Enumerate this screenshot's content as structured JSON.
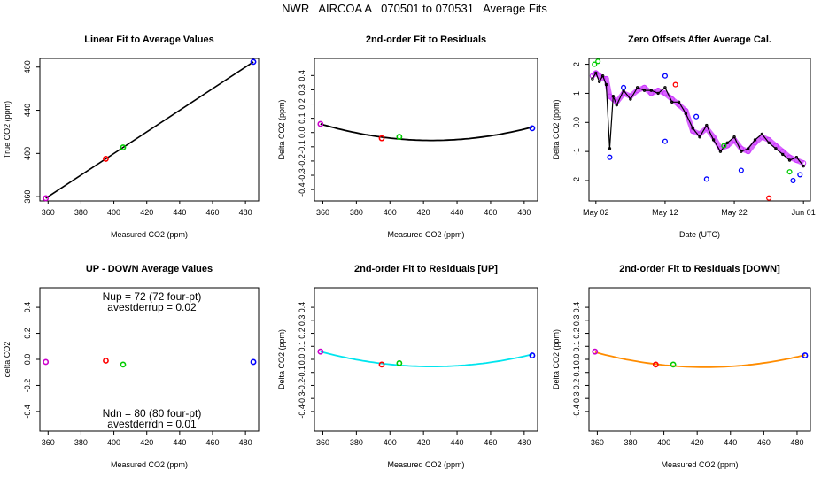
{
  "title": "NWR   AIRCOA A   070501 to 070531   Average Fits",
  "chart_data": [
    {
      "type": "scatter",
      "title": "Linear Fit to Average Values",
      "xlabel": "Measured CO2 (ppm)",
      "ylabel": "True CO2 (ppm)",
      "xlim": [
        355,
        488
      ],
      "ylim": [
        356,
        488
      ],
      "xticks": [
        360,
        380,
        400,
        420,
        440,
        460,
        480
      ],
      "yticks": [
        360,
        400,
        440,
        480
      ],
      "points": [
        {
          "x": 358.6,
          "y": 358.5,
          "color": "#cc00cc"
        },
        {
          "x": 395.1,
          "y": 395.0,
          "color": "#ff0000"
        },
        {
          "x": 405.6,
          "y": 405.6,
          "color": "#00cc00"
        },
        {
          "x": 484.8,
          "y": 484.8,
          "color": "#0000ff"
        }
      ],
      "fit_line": {
        "type": "linear",
        "color": "#000000",
        "x": [
          358.6,
          484.8
        ],
        "y": [
          358.5,
          484.8
        ]
      }
    },
    {
      "type": "scatter",
      "title": "2nd-order Fit to Residuals",
      "xlabel": "Measured CO2 (ppm)",
      "ylabel": "Delta CO2 (ppm)",
      "xlim": [
        355,
        488
      ],
      "ylim": [
        -0.48,
        0.52
      ],
      "xticks": [
        360,
        380,
        400,
        420,
        440,
        460,
        480
      ],
      "yticks": [
        -0.4,
        -0.3,
        -0.2,
        -0.1,
        0.0,
        0.1,
        0.2,
        0.3,
        0.4
      ],
      "points": [
        {
          "x": 358.6,
          "y": 0.06,
          "color": "#cc00cc"
        },
        {
          "x": 395.1,
          "y": -0.04,
          "color": "#ff0000"
        },
        {
          "x": 405.6,
          "y": -0.03,
          "color": "#00cc00"
        },
        {
          "x": 484.8,
          "y": 0.03,
          "color": "#0000ff"
        }
      ],
      "fit_curve": {
        "type": "quadratic",
        "color": "#000000",
        "vertex_x": 425,
        "vertex_y": -0.055,
        "a": 2.61e-05,
        "x_range": [
          358.6,
          484.8
        ]
      }
    },
    {
      "type": "line",
      "title": "Zero Offsets After Average Cal.",
      "xlabel": "Date (UTC)",
      "ylabel": "Delta CO2 (ppm)",
      "x_unit": "days since May 1",
      "xlim": [
        0,
        32
      ],
      "ylim": [
        -2.7,
        2.2
      ],
      "xticks": [
        {
          "value": 1,
          "label": "May 02"
        },
        {
          "value": 11,
          "label": "May 12"
        },
        {
          "value": 21,
          "label": "May 22"
        },
        {
          "value": 31,
          "label": "Jun 01"
        }
      ],
      "yticks": [
        -2,
        -1,
        0,
        1,
        2
      ],
      "series": [
        {
          "color": "#cc33ff",
          "x": [
            0.5,
            1.0,
            1.5,
            2.0,
            2.5,
            3.0,
            3.5,
            4.0,
            5.0,
            6.0,
            7.0,
            8.0,
            9.0,
            10.0,
            11.0,
            12.0,
            13.0,
            14.0,
            15.0,
            16.0,
            17.0,
            18.0,
            19.0,
            20.0,
            21.0,
            22.0,
            23.0,
            24.0,
            25.0,
            26.0,
            27.0,
            28.0,
            29.0,
            30.0,
            31.0
          ],
          "y": [
            1.6,
            1.7,
            1.6,
            1.5,
            1.5,
            0.9,
            0.8,
            0.7,
            1.0,
            0.9,
            1.1,
            1.2,
            1.0,
            1.1,
            1.0,
            0.8,
            0.6,
            0.4,
            -0.3,
            -0.4,
            -0.2,
            -0.5,
            -0.9,
            -0.8,
            -0.6,
            -0.9,
            -1.0,
            -0.7,
            -0.5,
            -0.6,
            -0.8,
            -1.0,
            -1.2,
            -1.3,
            -1.4
          ]
        },
        {
          "color": "#000000",
          "x": [
            0.5,
            1.0,
            1.5,
            2.0,
            2.5,
            3.0,
            3.5,
            4.0,
            5.0,
            6.0,
            7.0,
            8.0,
            9.0,
            10.0,
            11.0,
            12.0,
            13.0,
            14.0,
            15.0,
            16.0,
            17.0,
            18.0,
            19.0,
            20.0,
            21.0,
            22.0,
            23.0,
            24.0,
            25.0,
            26.0,
            27.0,
            28.0,
            29.0,
            30.0,
            31.0
          ],
          "y": [
            1.5,
            1.7,
            1.4,
            1.6,
            1.3,
            -0.9,
            0.9,
            0.6,
            1.1,
            0.8,
            1.2,
            1.1,
            1.1,
            1.0,
            1.2,
            0.7,
            0.7,
            0.3,
            -0.2,
            -0.5,
            -0.1,
            -0.6,
            -1.0,
            -0.7,
            -0.5,
            -1.0,
            -0.9,
            -0.6,
            -0.4,
            -0.7,
            -0.9,
            -1.1,
            -1.3,
            -1.2,
            -1.5
          ]
        }
      ],
      "outliers": [
        {
          "x": 0.8,
          "y": 2.0,
          "color": "#00cc00"
        },
        {
          "x": 1.3,
          "y": 2.1,
          "color": "#00cc00"
        },
        {
          "x": 3.0,
          "y": -1.2,
          "color": "#0000ff"
        },
        {
          "x": 5.0,
          "y": 1.2,
          "color": "#0000ff"
        },
        {
          "x": 11.0,
          "y": 1.6,
          "color": "#0000ff"
        },
        {
          "x": 11.0,
          "y": -0.65,
          "color": "#0000ff"
        },
        {
          "x": 12.5,
          "y": 1.3,
          "color": "#ff0000"
        },
        {
          "x": 15.5,
          "y": 0.2,
          "color": "#0000ff"
        },
        {
          "x": 17.0,
          "y": -1.95,
          "color": "#0000ff"
        },
        {
          "x": 19.5,
          "y": -0.8,
          "color": "#00cc00"
        },
        {
          "x": 22.0,
          "y": -1.65,
          "color": "#0000ff"
        },
        {
          "x": 26.0,
          "y": -2.6,
          "color": "#ff0000"
        },
        {
          "x": 29.0,
          "y": -1.7,
          "color": "#00cc00"
        },
        {
          "x": 29.5,
          "y": -2.0,
          "color": "#0000ff"
        },
        {
          "x": 30.5,
          "y": -1.8,
          "color": "#0000ff"
        }
      ]
    },
    {
      "type": "scatter",
      "title": "UP - DOWN Average Values",
      "xlabel": "Measured CO2 (ppm)",
      "ylabel": "delta CO2",
      "xlim": [
        355,
        488
      ],
      "ylim": [
        -0.55,
        0.55
      ],
      "xticks": [
        360,
        380,
        400,
        420,
        440,
        460,
        480
      ],
      "yticks": [
        -0.4,
        -0.2,
        0.0,
        0.2,
        0.4
      ],
      "points": [
        {
          "x": 358.6,
          "y": -0.02,
          "color": "#cc00cc"
        },
        {
          "x": 395.1,
          "y": -0.01,
          "color": "#ff0000"
        },
        {
          "x": 405.6,
          "y": -0.04,
          "color": "#00cc00"
        },
        {
          "x": 484.8,
          "y": -0.02,
          "color": "#0000ff"
        }
      ],
      "annotations": {
        "top_1": "Nup = 72 (72 four-pt)",
        "top_2": "avestderrup =  0.02",
        "bottom_1": "Ndn = 80 (80 four-pt)",
        "bottom_2": "avestderrdn =  0.01"
      }
    },
    {
      "type": "scatter",
      "title": "2nd-order Fit to Residuals [UP]",
      "xlabel": "Measured CO2 (ppm)",
      "ylabel": "Delta CO2 (ppm)",
      "xlim": [
        355,
        488
      ],
      "ylim": [
        -0.55,
        0.55
      ],
      "xticks": [
        360,
        380,
        400,
        420,
        440,
        460,
        480
      ],
      "yticks": [
        -0.4,
        -0.3,
        -0.2,
        -0.1,
        0.0,
        0.1,
        0.2,
        0.3,
        0.4
      ],
      "points": [
        {
          "x": 358.6,
          "y": 0.06,
          "color": "#cc00cc"
        },
        {
          "x": 395.1,
          "y": -0.04,
          "color": "#ff0000"
        },
        {
          "x": 405.6,
          "y": -0.03,
          "color": "#00cc00"
        },
        {
          "x": 484.8,
          "y": 0.03,
          "color": "#0000ff"
        }
      ],
      "fit_curve": {
        "type": "quadratic",
        "color": "#00e5ee",
        "vertex_x": 425,
        "vertex_y": -0.055,
        "a": 2.61e-05,
        "x_range": [
          358.6,
          484.8
        ]
      }
    },
    {
      "type": "scatter",
      "title": "2nd-order Fit to Residuals [DOWN]",
      "xlabel": "Measured CO2 (ppm)",
      "ylabel": "Delta CO2 (ppm)",
      "xlim": [
        355,
        488
      ],
      "ylim": [
        -0.55,
        0.55
      ],
      "xticks": [
        360,
        380,
        400,
        420,
        440,
        460,
        480
      ],
      "yticks": [
        -0.4,
        -0.3,
        -0.2,
        -0.1,
        0.0,
        0.1,
        0.2,
        0.3,
        0.4
      ],
      "points": [
        {
          "x": 358.6,
          "y": 0.06,
          "color": "#cc00cc"
        },
        {
          "x": 395.1,
          "y": -0.04,
          "color": "#ff0000"
        },
        {
          "x": 405.6,
          "y": -0.04,
          "color": "#00cc00"
        },
        {
          "x": 484.8,
          "y": 0.03,
          "color": "#0000ff"
        }
      ],
      "fit_curve": {
        "type": "quadratic",
        "color": "#ff8c00",
        "vertex_x": 425,
        "vertex_y": -0.06,
        "a": 2.61e-05,
        "x_range": [
          358.6,
          484.8
        ]
      }
    }
  ]
}
